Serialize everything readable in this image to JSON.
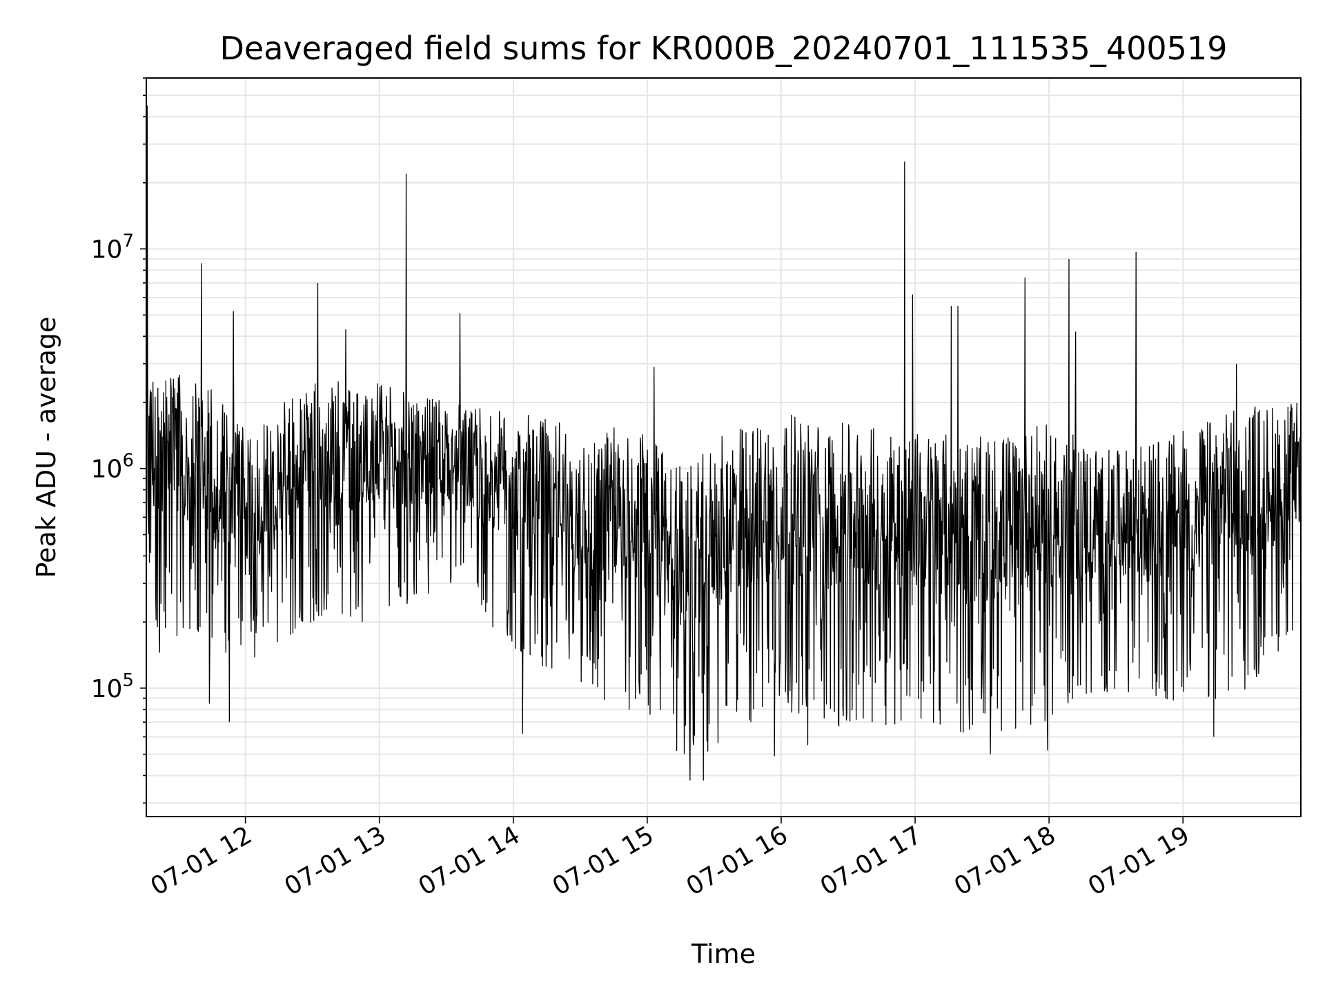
{
  "chart_data": {
    "type": "line",
    "title": "Deaveraged field sums for KR000B_20240701_111535_400519",
    "xlabel": "Time",
    "ylabel": "Peak ADU - average",
    "x_ticks": [
      "07-01 12",
      "07-01 13",
      "07-01 14",
      "07-01 15",
      "07-01 16",
      "07-01 17",
      "07-01 18",
      "07-01 19"
    ],
    "x_tick_hours": [
      12,
      13,
      14,
      15,
      16,
      17,
      18,
      19
    ],
    "xlim_hours": [
      11.26,
      19.88
    ],
    "y_scale": "log",
    "y_ticks": [
      {
        "base": "10",
        "exp": "5",
        "value": 100000
      },
      {
        "base": "10",
        "exp": "6",
        "value": 1000000
      },
      {
        "base": "10",
        "exp": "7",
        "value": 10000000
      }
    ],
    "ylim": [
      26000,
      60000000
    ],
    "grid": true,
    "line_color": "#000000",
    "grid_color": "#e6e6e6",
    "series": [
      {
        "envelope_profile": [
          {
            "hour": 11.26,
            "low": 200000,
            "high": 3000000
          },
          {
            "hour": 11.7,
            "low": 150000,
            "high": 2500000
          },
          {
            "hour": 12.0,
            "low": 130000,
            "high": 1500000
          },
          {
            "hour": 12.5,
            "low": 200000,
            "high": 2500000
          },
          {
            "hour": 13.0,
            "low": 200000,
            "high": 2500000
          },
          {
            "hour": 13.5,
            "low": 300000,
            "high": 2000000
          },
          {
            "hour": 14.0,
            "low": 150000,
            "high": 1800000
          },
          {
            "hour": 14.5,
            "low": 100000,
            "high": 1600000
          },
          {
            "hour": 15.0,
            "low": 70000,
            "high": 1500000
          },
          {
            "hour": 15.3,
            "low": 42000,
            "high": 1000000
          },
          {
            "hour": 15.6,
            "low": 60000,
            "high": 1500000
          },
          {
            "hour": 16.0,
            "low": 80000,
            "high": 1800000
          },
          {
            "hour": 16.5,
            "low": 65000,
            "high": 1600000
          },
          {
            "hour": 17.0,
            "low": 70000,
            "high": 1500000
          },
          {
            "hour": 17.5,
            "low": 60000,
            "high": 1400000
          },
          {
            "hour": 18.0,
            "low": 70000,
            "high": 1600000
          },
          {
            "hour": 18.5,
            "low": 100000,
            "high": 1200000
          },
          {
            "hour": 19.0,
            "low": 80000,
            "high": 1500000
          },
          {
            "hour": 19.5,
            "low": 100000,
            "high": 2000000
          },
          {
            "hour": 19.88,
            "low": 200000,
            "high": 2000000
          }
        ],
        "spikes": [
          {
            "hour": 11.265,
            "value": 45000000
          },
          {
            "hour": 11.67,
            "value": 8600000
          },
          {
            "hour": 11.91,
            "value": 5200000
          },
          {
            "hour": 12.54,
            "value": 7000000
          },
          {
            "hour": 12.75,
            "value": 4300000
          },
          {
            "hour": 13.2,
            "value": 22000000
          },
          {
            "hour": 13.6,
            "value": 5100000
          },
          {
            "hour": 15.05,
            "value": 2900000
          },
          {
            "hour": 16.92,
            "value": 25000000
          },
          {
            "hour": 16.98,
            "value": 6200000
          },
          {
            "hour": 17.27,
            "value": 5500000
          },
          {
            "hour": 17.32,
            "value": 5500000
          },
          {
            "hour": 17.82,
            "value": 7400000
          },
          {
            "hour": 18.15,
            "value": 9000000
          },
          {
            "hour": 18.2,
            "value": 4200000
          },
          {
            "hour": 18.65,
            "value": 9700000
          },
          {
            "hour": 19.4,
            "value": 3000000
          }
        ],
        "dips": [
          {
            "hour": 11.36,
            "value": 145000
          },
          {
            "hour": 11.73,
            "value": 85000
          },
          {
            "hour": 11.88,
            "value": 70000
          },
          {
            "hour": 14.07,
            "value": 62000
          },
          {
            "hour": 15.32,
            "value": 38000
          },
          {
            "hour": 15.42,
            "value": 38000
          },
          {
            "hour": 15.95,
            "value": 49000
          },
          {
            "hour": 16.2,
            "value": 55000
          },
          {
            "hour": 17.56,
            "value": 50000
          },
          {
            "hour": 17.99,
            "value": 52000
          },
          {
            "hour": 19.23,
            "value": 60000
          }
        ]
      }
    ]
  }
}
